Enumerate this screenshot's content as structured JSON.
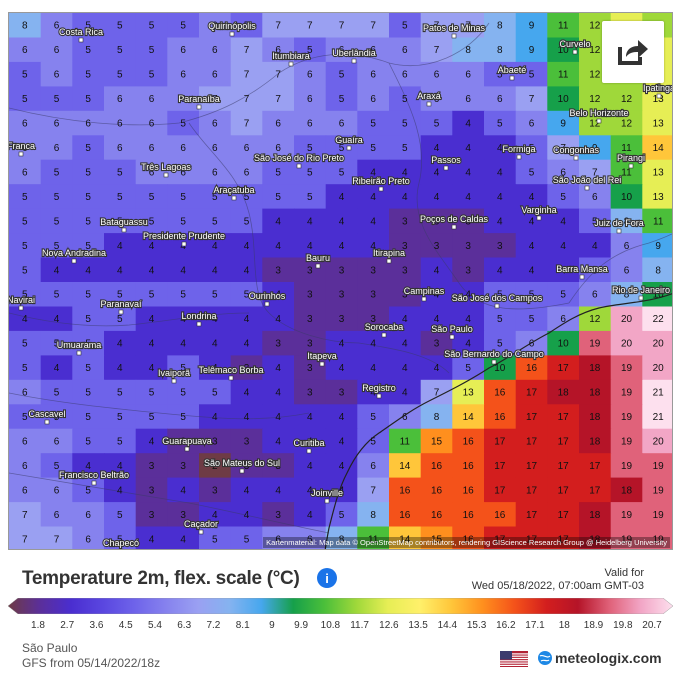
{
  "map": {
    "attribution": "Kartenmaterial: Map data © OpenStreetMap contributors, rendering GIScience Research Group @ Heidelberg University",
    "cities": [
      "Costa Rica",
      "Quirinópolis",
      "Patos de Minas",
      "Curvelo",
      "Itumbiara",
      "Uberlândia",
      "Abaeté",
      "Ipatinga",
      "Paranaíba",
      "Araxá",
      "Belo Horizonte",
      "Franca",
      "Guaíra",
      "Formiga",
      "Congonhas",
      "Pirangi",
      "São José do Rio Preto",
      "Passos",
      "São João del Rei",
      "Três Lagoas",
      "Ribeirão Preto",
      "Araçatuba",
      "Varginha",
      "Juiz de Fora",
      "Bataguassu",
      "Poços de Caldas",
      "Presidente Prudente",
      "Bauru",
      "Itirapina",
      "Barra Mansa",
      "Nova Andradina",
      "Campinas",
      "São José dos Campos",
      "Rio de Janeiro",
      "Ourinhos",
      "Paranavaí",
      "Navirai",
      "Londrina",
      "Sorocaba",
      "São Paulo",
      "Umuarama",
      "Itapeva",
      "São Bernardo do Campo",
      "Ivaiporã",
      "Telêmaco Borba",
      "Registro",
      "Cascavel",
      "Guarapuava",
      "Curitiba",
      "São Mateus do Sul",
      "Francisco Beltrão",
      "Joinville",
      "Caçador",
      "Chapecó"
    ],
    "temperature_grid": [
      [
        8,
        6,
        5,
        5,
        5,
        5,
        6,
        5,
        7,
        7,
        7,
        7,
        5,
        7,
        7,
        8,
        9,
        11,
        12,
        13,
        12
      ],
      [
        6,
        6,
        5,
        5,
        5,
        6,
        6,
        7,
        6,
        5,
        6,
        6,
        6,
        7,
        8,
        8,
        9,
        10,
        12,
        12,
        13
      ],
      [
        5,
        6,
        5,
        5,
        5,
        6,
        6,
        7,
        7,
        6,
        5,
        6,
        6,
        6,
        6,
        5,
        5,
        11,
        12,
        12,
        13
      ],
      [
        5,
        5,
        5,
        6,
        6,
        6,
        7,
        7,
        7,
        6,
        5,
        6,
        5,
        6,
        6,
        6,
        7,
        10,
        12,
        12,
        13
      ],
      [
        6,
        6,
        6,
        6,
        6,
        5,
        6,
        7,
        6,
        6,
        6,
        5,
        5,
        5,
        4,
        5,
        6,
        9,
        12,
        12,
        13
      ],
      [
        6,
        6,
        5,
        6,
        6,
        6,
        6,
        6,
        6,
        5,
        5,
        5,
        5,
        4,
        4,
        4,
        5,
        7,
        9,
        11,
        14
      ],
      [
        6,
        5,
        5,
        5,
        6,
        6,
        6,
        6,
        5,
        5,
        5,
        4,
        4,
        4,
        4,
        4,
        5,
        6,
        7,
        11,
        13
      ],
      [
        5,
        5,
        5,
        5,
        5,
        5,
        5,
        5,
        5,
        5,
        4,
        4,
        4,
        4,
        4,
        4,
        4,
        5,
        6,
        10,
        13
      ],
      [
        5,
        5,
        5,
        5,
        5,
        5,
        5,
        5,
        4,
        4,
        4,
        4,
        3,
        3,
        3,
        4,
        4,
        4,
        5,
        8,
        11
      ],
      [
        5,
        5,
        5,
        4,
        4,
        4,
        4,
        4,
        4,
        4,
        4,
        4,
        3,
        3,
        3,
        3,
        4,
        4,
        4,
        6,
        9
      ],
      [
        5,
        4,
        4,
        4,
        4,
        4,
        4,
        4,
        3,
        3,
        3,
        3,
        3,
        4,
        3,
        4,
        4,
        4,
        5,
        6,
        8
      ],
      [
        5,
        5,
        5,
        5,
        5,
        5,
        5,
        5,
        4,
        3,
        3,
        3,
        3,
        4,
        4,
        5,
        5,
        5,
        6,
        8,
        10
      ],
      [
        4,
        4,
        5,
        5,
        4,
        4,
        4,
        4,
        4,
        3,
        3,
        3,
        4,
        4,
        4,
        5,
        5,
        6,
        12,
        20,
        22
      ],
      [
        5,
        5,
        5,
        4,
        4,
        4,
        4,
        4,
        3,
        3,
        4,
        4,
        4,
        3,
        4,
        5,
        6,
        10,
        19,
        20,
        20
      ],
      [
        5,
        4,
        5,
        4,
        4,
        5,
        4,
        3,
        4,
        3,
        4,
        4,
        4,
        4,
        5,
        10,
        16,
        17,
        18,
        19,
        20
      ],
      [
        6,
        5,
        5,
        5,
        5,
        5,
        5,
        4,
        4,
        3,
        3,
        4,
        4,
        7,
        13,
        16,
        17,
        18,
        18,
        19,
        21
      ],
      [
        5,
        5,
        5,
        5,
        5,
        5,
        4,
        4,
        4,
        4,
        4,
        5,
        6,
        8,
        14,
        16,
        17,
        17,
        18,
        19,
        21
      ],
      [
        6,
        6,
        5,
        5,
        4,
        3,
        3,
        3,
        4,
        4,
        4,
        5,
        11,
        15,
        16,
        17,
        17,
        17,
        18,
        19,
        20
      ],
      [
        6,
        5,
        4,
        4,
        3,
        3,
        2,
        3,
        3,
        4,
        4,
        6,
        14,
        16,
        16,
        17,
        17,
        17,
        17,
        19,
        19
      ],
      [
        6,
        6,
        5,
        4,
        3,
        4,
        3,
        4,
        4,
        4,
        4,
        7,
        16,
        16,
        16,
        17,
        17,
        17,
        17,
        18,
        19
      ],
      [
        7,
        6,
        6,
        5,
        3,
        3,
        4,
        4,
        3,
        4,
        5,
        8,
        16,
        16,
        16,
        16,
        17,
        17,
        18,
        19,
        19
      ],
      [
        7,
        7,
        6,
        5,
        4,
        4,
        5,
        5,
        6,
        6,
        8,
        11,
        14,
        15,
        16,
        17,
        17,
        17,
        18,
        19,
        19
      ]
    ]
  },
  "header": {
    "title": "Temperature 2m, flex. scale (°C)",
    "info_icon": "info-icon",
    "valid_label": "Valid for",
    "valid_date": "Wed 05/18/2022, 07:00am GMT-03"
  },
  "scale": {
    "ticks": [
      "1.8",
      "2.7",
      "3.6",
      "4.5",
      "5.4",
      "6.3",
      "7.2",
      "8.1",
      "9",
      "9.9",
      "10.8",
      "11.7",
      "12.6",
      "13.5",
      "14.4",
      "15.3",
      "16.2",
      "17.1",
      "18",
      "18.9",
      "19.8",
      "20.7"
    ],
    "colors": [
      "#6e3b45",
      "#5b2f9a",
      "#4a2ed0",
      "#5a47e0",
      "#6e63ea",
      "#8682ee",
      "#9aa0f2",
      "#85b3f0",
      "#46a7ee",
      "#16a04a",
      "#4bbf3a",
      "#9fd83a",
      "#e6ee55",
      "#fff06a",
      "#ffc63a",
      "#ff8f1e",
      "#f4521a",
      "#d31e1e",
      "#b51428",
      "#e0627a",
      "#f2a6c6",
      "#fde0ee"
    ]
  },
  "footer": {
    "location": "São Paulo",
    "model": "GFS from 05/14/2022/18z",
    "brand": "meteologix.com",
    "flag_icon": "us-flag-icon",
    "globe_icon": "globe-icon"
  }
}
